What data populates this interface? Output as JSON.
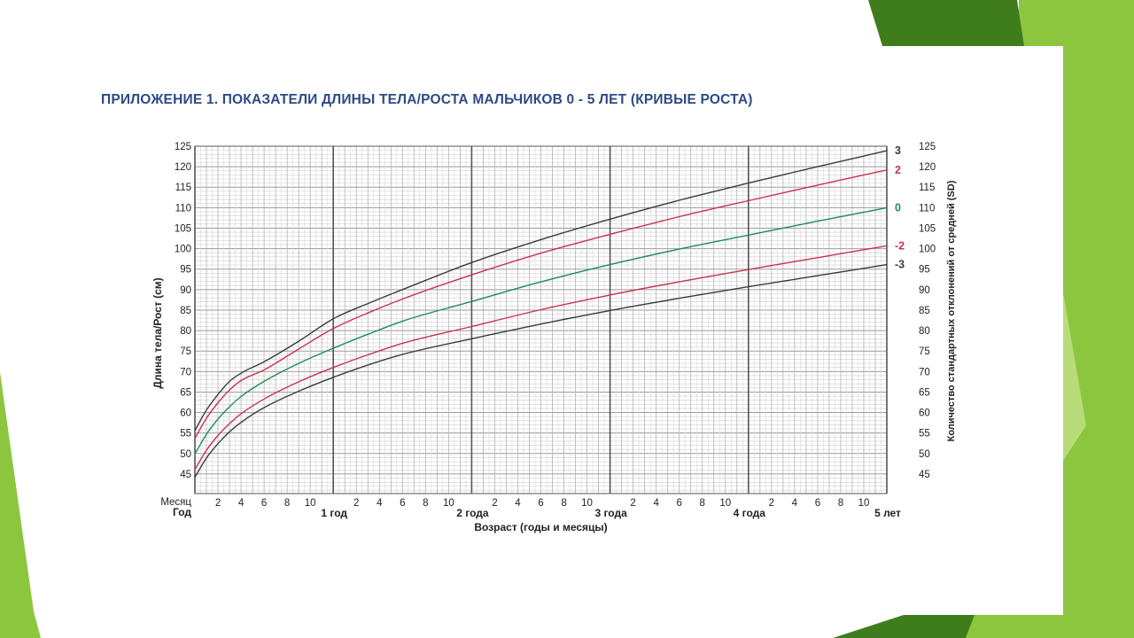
{
  "slide": {
    "title": "ПРИЛОЖЕНИЕ 1. ПОКАЗАТЕЛИ ДЛИНЫ ТЕЛА/РОСТА МАЛЬЧИКОВ 0 - 5 ЛЕТ (КРИВЫЕ РОСТА)"
  },
  "colors": {
    "title": "#2e4a86",
    "accent_green": "#8cc63f",
    "accent_dark_green": "#3f7d1c",
    "sd3": "#3b3b3b",
    "sd2": "#c8334f",
    "sd0": "#1e8a5a"
  },
  "chart_data": {
    "type": "line",
    "xlabel": "Возраст (годы и месяцы)",
    "ylabel": "Длина тела/Рост (см)",
    "ylabel_right": "Количество стандартных отклонений от средней (SD)",
    "row_label_month": "Месяц",
    "row_label_year": "Год",
    "month_ticks": [
      "2",
      "4",
      "6",
      "8",
      "10"
    ],
    "year_labels": [
      "1 год",
      "2 года",
      "3 года",
      "4 года",
      "5 лет"
    ],
    "xlim_months": [
      0,
      60
    ],
    "ylim": [
      40,
      125
    ],
    "y_ticks": [
      45,
      50,
      55,
      60,
      65,
      70,
      75,
      80,
      85,
      90,
      95,
      100,
      105,
      110,
      115,
      120,
      125
    ],
    "grid": true,
    "x_months": [
      0,
      1,
      2,
      3,
      4,
      6,
      9,
      12,
      15,
      18,
      24,
      30,
      36,
      42,
      48,
      54,
      60
    ],
    "series": [
      {
        "name": "3",
        "color": "#3b3b3b",
        "values": [
          55.6,
          60.6,
          64.4,
          67.6,
          69.6,
          72.4,
          77.4,
          82.9,
          86.6,
          90.0,
          96.6,
          102.2,
          107.2,
          111.8,
          116.0,
          120.0,
          123.9
        ]
      },
      {
        "name": "2",
        "color": "#c8334f",
        "values": [
          53.7,
          58.6,
          62.4,
          65.5,
          67.8,
          70.4,
          75.5,
          80.5,
          84.3,
          87.7,
          93.6,
          98.9,
          103.5,
          107.8,
          111.7,
          115.5,
          119.2
        ]
      },
      {
        "name": "0",
        "color": "#1e8a5a",
        "values": [
          49.9,
          54.7,
          58.4,
          61.4,
          63.9,
          67.6,
          72.0,
          75.7,
          79.1,
          82.3,
          87.1,
          91.9,
          96.1,
          99.9,
          103.3,
          106.7,
          110.0
        ]
      },
      {
        "name": "-2",
        "color": "#c8334f",
        "values": [
          46.1,
          50.8,
          54.4,
          57.3,
          59.7,
          63.3,
          67.5,
          71.0,
          74.1,
          76.9,
          81.0,
          85.1,
          88.7,
          91.9,
          94.9,
          97.8,
          100.7
        ]
      },
      {
        "name": "-3",
        "color": "#3b3b3b",
        "values": [
          44.2,
          48.9,
          52.4,
          55.3,
          57.6,
          61.2,
          65.2,
          68.6,
          71.6,
          74.2,
          78.0,
          81.6,
          84.9,
          87.9,
          90.7,
          93.4,
          96.1
        ]
      }
    ]
  }
}
